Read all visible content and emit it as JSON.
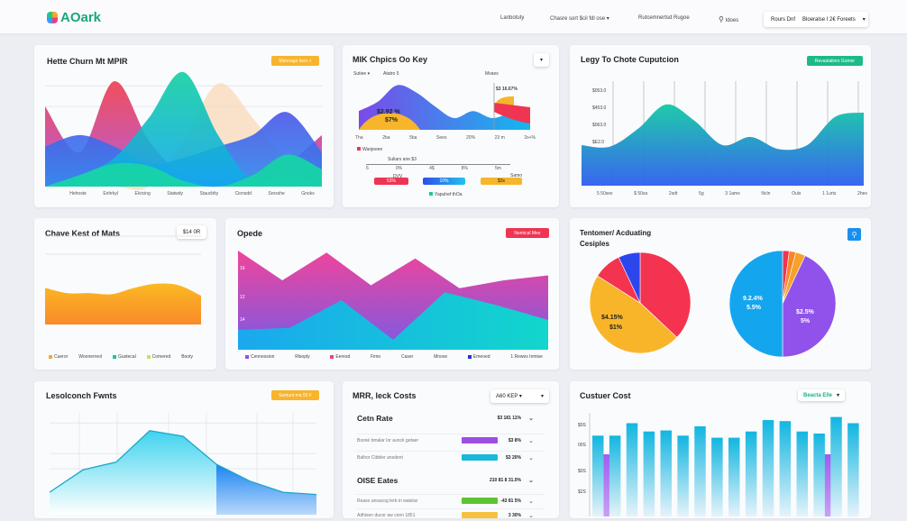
{
  "header": {
    "logo": "AOark",
    "nav": [
      "Lanbotuty",
      "Chasre sort $cil fdl ose",
      "Rutcemnertsd Rugoe"
    ],
    "search_label": "Idoes",
    "select": {
      "a": "Rours Dnf",
      "b": "Bloeralse I 2€ Foreets"
    }
  },
  "colors": {
    "teal": "#17c9a3",
    "cyan": "#12b7e6",
    "blue": "#2f5ff0",
    "pink": "#f0407a",
    "red": "#f0344e",
    "orange": "#f8b02a",
    "purple": "#8f4ef0",
    "green": "#13c08d"
  },
  "cards": {
    "c1": {
      "title": "Hette Churn Mt MPIR",
      "button": "Mannage Iiers >",
      "xlabels": [
        "Hehoste",
        "Enhrkyl",
        "Elvicing",
        "Statwdy",
        "Staucblty",
        "Cionsdd",
        "Srosshe",
        "Gnoks"
      ]
    },
    "c2": {
      "title": "MIK Chpics Oo Key",
      "filter1": "Sutiee ▾",
      "filter2": "Atatro 5",
      "col": "Mvaes",
      "peak": "$3 16.67%",
      "value1": "$2.92 %",
      "value2": "$7%",
      "xlabels": [
        "Tha",
        "2ba",
        "5ba",
        "Sees",
        "20%",
        "23 m",
        "2s+%"
      ],
      "legend": "Wanjeeen",
      "scale_label": "Suliars ane $3",
      "scale_ticks": [
        "6",
        "0%",
        "4$",
        "8%",
        "5m"
      ],
      "pill_labels": [
        "DVV",
        "Samo"
      ],
      "pills": [
        "53%",
        "10%",
        "$3s"
      ],
      "legend2": "Yapuhef thOa"
    },
    "c3": {
      "title": "Legy To Chote Cuputcion",
      "button": "Revastalinrs Gomer",
      "ylabels": [
        "$053.0",
        "$453.0",
        "$063.0",
        "$E2.0"
      ],
      "xlabels": [
        "5 50ses",
        "$ 50sa",
        "2sdt",
        "5g",
        "3 1ams",
        "Ncln",
        "Ouls",
        "1 1urts",
        "2hes"
      ]
    },
    "c4": {
      "title": "Chave Kest of Mats",
      "badge": "$14 0R",
      "legend": [
        "Cueror",
        "Woonerreol",
        "Gustecal",
        "Comered",
        "Booty"
      ]
    },
    "c5": {
      "title": "Opede",
      "button": "Nemical Mee",
      "ylabels": [
        "16",
        "12",
        "14"
      ],
      "legend": [
        "Cennession",
        "Rlsoply",
        "Eeresd",
        "Fimo",
        "Caser",
        "Mnose",
        "Emeoed",
        "1 Rewes Inmise"
      ]
    },
    "c6": {
      "title_1": "Tentomer/ Acduating",
      "title_2": "Cesiples",
      "left_label_1": "$4.15%",
      "left_label_2": "$1%",
      "right_label_1": "9.2.4%",
      "right_label_2": "5.5%",
      "right_label_3": "$2.5%",
      "right_label_4": "5%"
    },
    "c7": {
      "title": "Lesolconch Fwnts",
      "button": "Semunt ma 55 F"
    },
    "c8": {
      "title": "MRR, leck Costs",
      "select": "A60 KEP ▾",
      "rows": [
        {
          "label": "Cetn Rate",
          "value": "$3 181 11%",
          "heading": true
        },
        {
          "label": "Bsoné  bmalar lor aunck getaer",
          "value": "$3 8%",
          "fill": "#9b4fe0"
        },
        {
          "label": "Balhor Cibbler ansdent",
          "value": "$3 20%",
          "fill": "#1ab8d8"
        },
        {
          "label": "OISE Eates",
          "value": "210 81 8 31.0%",
          "heading": true
        },
        {
          "label": "Reaso ansacog lerb in watstar",
          "value": "-43 81 5%",
          "fill": "#5cc431"
        },
        {
          "label": "Adhisen ducor aw conn 1851",
          "value": "3 30%",
          "fill": "#f6c23e"
        }
      ]
    },
    "c9": {
      "title": "Custuer Cost",
      "select": "Beacta Elle",
      "ylabels": [
        "$0S",
        "00S",
        "$0S",
        "$2S"
      ]
    }
  },
  "chart_data": [
    {
      "id": "c1",
      "type": "area",
      "series": [
        {
          "color": "#f0407a",
          "values": [
            70,
            30,
            92,
            40,
            10,
            5,
            8,
            20,
            45
          ]
        },
        {
          "color": "#f9d3a8",
          "values": [
            0,
            0,
            0,
            0,
            40,
            90,
            60,
            20,
            0
          ]
        },
        {
          "color": "#3a63ef",
          "values": [
            35,
            45,
            35,
            20,
            25,
            35,
            45,
            65,
            30
          ]
        },
        {
          "color": "#12c3a6",
          "values": [
            0,
            10,
            25,
            60,
            100,
            45,
            5,
            10,
            0
          ]
        },
        {
          "color": "#13d0a6",
          "values": [
            0,
            10,
            20,
            18,
            5,
            0,
            10,
            28,
            15
          ]
        }
      ]
    },
    {
      "id": "c2",
      "type": "area",
      "series": [
        {
          "color": "#3f6af0",
          "values": [
            40,
            60,
            95,
            80,
            50,
            25,
            40,
            25,
            35,
            30
          ]
        }
      ]
    },
    {
      "id": "c3",
      "type": "area",
      "ylim": [
        0,
        100
      ],
      "series": [
        {
          "color": "#14c7c2",
          "values": [
            50,
            48,
            70,
            100,
            80,
            50,
            60,
            45,
            50,
            85,
            90
          ]
        }
      ]
    },
    {
      "id": "c4",
      "type": "area",
      "series": [
        {
          "color": "#f9a825",
          "values": [
            70,
            60,
            60,
            58,
            70,
            78,
            75,
            55
          ]
        }
      ]
    },
    {
      "id": "c5",
      "type": "area",
      "series": [
        {
          "color": "#e6458e",
          "values": [
            100,
            70,
            98,
            65,
            92,
            62,
            70,
            75
          ]
        },
        {
          "color": "#17c4d4",
          "values": [
            20,
            22,
            50,
            10,
            58,
            45,
            30
          ]
        }
      ]
    },
    {
      "id": "c6a",
      "type": "pie",
      "values": [
        37,
        47,
        9,
        7
      ],
      "colors": [
        "#f43350",
        "#f9b52a",
        "#f43350",
        "#2c46ee"
      ]
    },
    {
      "id": "c6b",
      "type": "pie",
      "values": [
        2,
        2,
        3,
        43,
        50
      ],
      "colors": [
        "#f43350",
        "#f7842a",
        "#f7a12a",
        "#9052ea",
        "#14a5ef"
      ]
    },
    {
      "id": "c7",
      "type": "line",
      "values": [
        20,
        40,
        47,
        75,
        70,
        45,
        30,
        20,
        18
      ]
    },
    {
      "id": "c9",
      "type": "bar",
      "values": [
        78,
        78,
        90,
        82,
        83,
        78,
        87,
        76,
        76,
        82,
        93,
        92,
        82,
        80,
        96,
        90
      ],
      "secondary": [
        60,
        60
      ]
    }
  ]
}
